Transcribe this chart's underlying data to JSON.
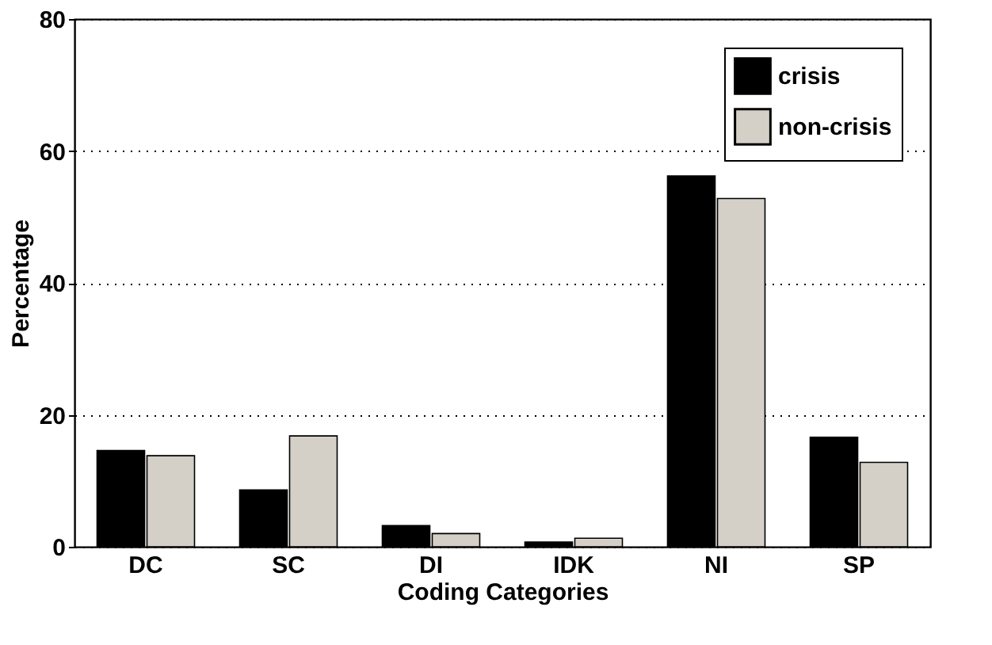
{
  "chart_data": {
    "type": "bar",
    "xlabel": "Coding Categories",
    "ylabel": "Percentage",
    "categories": [
      "DC",
      "SC",
      "DI",
      "IDK",
      "NI",
      "SP"
    ],
    "series": [
      {
        "name": "crisis",
        "color": "#000000",
        "values": [
          14.6,
          8.6,
          3.2,
          0.7,
          56.2,
          16.6
        ]
      },
      {
        "name": "non-crisis",
        "color": "#d4d0c8",
        "values": [
          13.8,
          16.8,
          2.0,
          1.3,
          52.8,
          12.8
        ]
      }
    ],
    "ylim": [
      0,
      80
    ],
    "yticks": [
      0,
      20,
      40,
      60,
      80
    ],
    "grid": "y",
    "legend": "top right"
  }
}
